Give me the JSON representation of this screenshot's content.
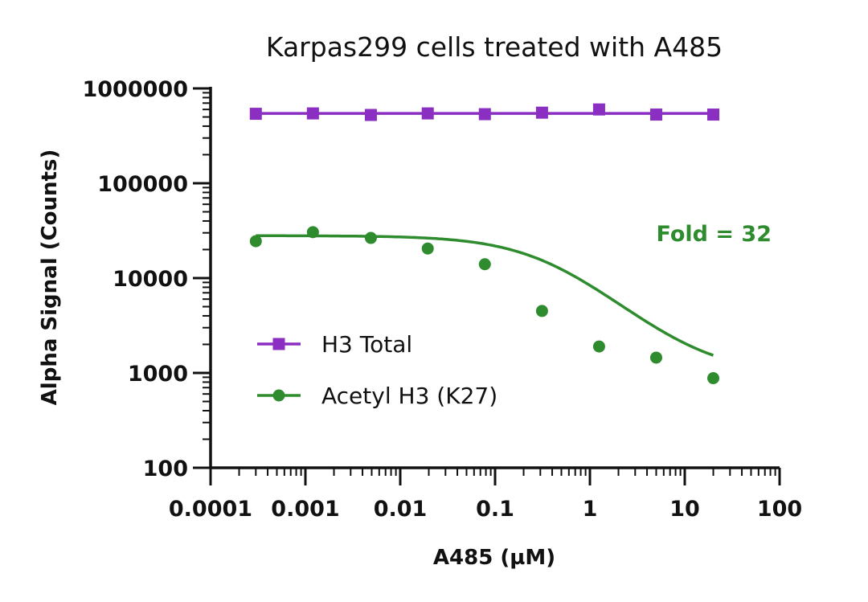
{
  "chart_data": {
    "type": "scatter",
    "title": "Karpas299 cells treated with A485",
    "xlabel": "A485 (µM)",
    "ylabel": "Alpha Signal (Counts)",
    "xscale": "log",
    "yscale": "log",
    "xlim": [
      0.0001,
      100
    ],
    "ylim": [
      100,
      1000000
    ],
    "x_ticks": [
      "0.0001",
      "0.001",
      "0.01",
      "0.1",
      "1",
      "10",
      "100"
    ],
    "y_ticks": [
      "100",
      "1000",
      "10000",
      "100000",
      "1000000"
    ],
    "legend_position": "center-left",
    "grid": false,
    "series": [
      {
        "name": "H3 Total",
        "color": "#8a2fc2",
        "marker": "square",
        "fit": "flat line",
        "x": [
          0.0003,
          0.0012,
          0.0049,
          0.0195,
          0.078,
          0.3125,
          1.25,
          5,
          20
        ],
        "y": [
          540000,
          545000,
          525000,
          545000,
          535000,
          555000,
          600000,
          530000,
          530000
        ]
      },
      {
        "name": "Acetyl H3 (K27)",
        "color": "#2e8b2e",
        "marker": "circle",
        "fit": "sigmoidal dose-response",
        "x": [
          0.0003,
          0.0012,
          0.0049,
          0.0195,
          0.078,
          0.3125,
          1.25,
          5,
          20
        ],
        "y": [
          24500,
          30500,
          26500,
          20500,
          14000,
          4500,
          1900,
          1450,
          880
        ],
        "fit_params": {
          "top": 28000,
          "bottom": 950,
          "ic50": 0.36,
          "hill": 0.95
        }
      }
    ],
    "annotations": [
      {
        "text": "Fold = 32",
        "color": "#2e8b2e",
        "x": 12,
        "y": 28000
      }
    ]
  }
}
